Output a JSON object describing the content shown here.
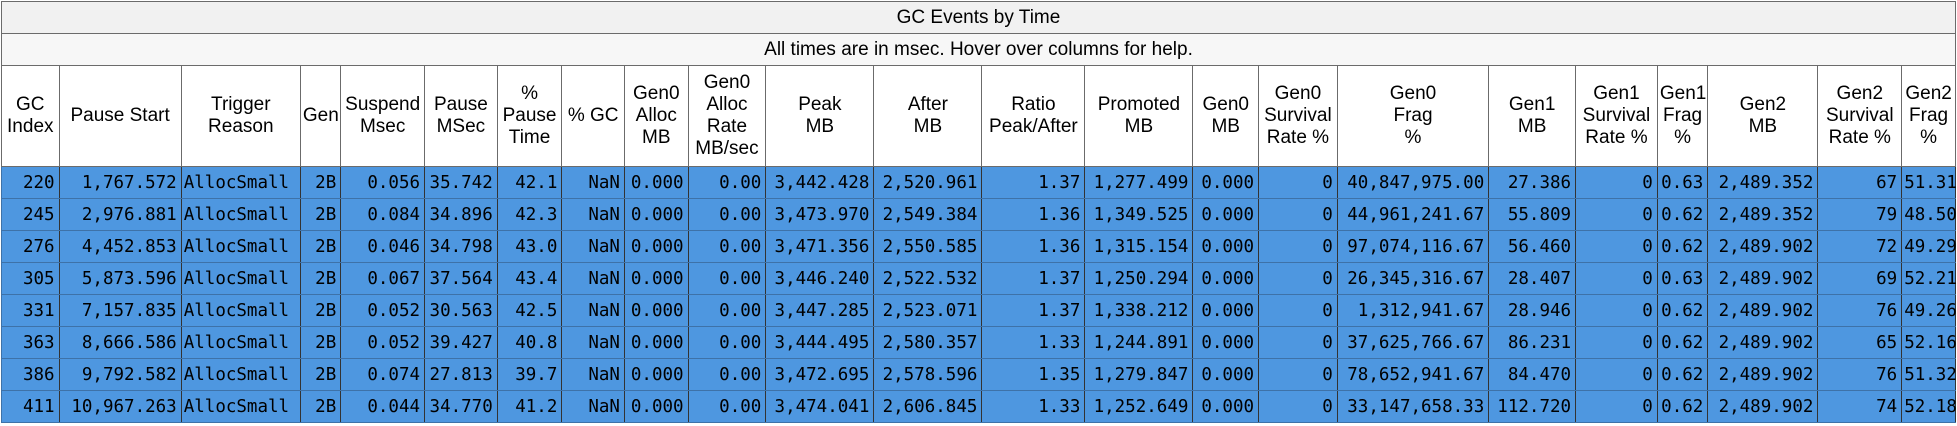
{
  "header": {
    "title": "GC Events by Time",
    "subtitle": "All times are in msec. Hover over columns for help."
  },
  "columns": [
    {
      "key": "gc_index",
      "label": "GC\nIndex"
    },
    {
      "key": "pause_start",
      "label": "Pause Start"
    },
    {
      "key": "trigger_reason",
      "label": "Trigger\nReason"
    },
    {
      "key": "gen",
      "label": "Gen"
    },
    {
      "key": "suspend_msec",
      "label": "Suspend\nMsec"
    },
    {
      "key": "pause_msec",
      "label": "Pause\nMSec"
    },
    {
      "key": "pct_pause_time",
      "label": "%\nPause\nTime"
    },
    {
      "key": "pct_gc",
      "label": "% GC"
    },
    {
      "key": "gen0_alloc_mb",
      "label": "Gen0\nAlloc\nMB"
    },
    {
      "key": "gen0_alloc_rate",
      "label": "Gen0\nAlloc\nRate\nMB/sec"
    },
    {
      "key": "peak_mb",
      "label": "Peak\nMB"
    },
    {
      "key": "after_mb",
      "label": "After\nMB"
    },
    {
      "key": "ratio_peak_after",
      "label": "Ratio\nPeak/After"
    },
    {
      "key": "promoted_mb",
      "label": "Promoted\nMB"
    },
    {
      "key": "gen0_mb",
      "label": "Gen0\nMB"
    },
    {
      "key": "gen0_survival_rate",
      "label": "Gen0\nSurvival\nRate %"
    },
    {
      "key": "gen0_frag",
      "label": "Gen0\nFrag\n%"
    },
    {
      "key": "gen1_mb",
      "label": "Gen1\nMB"
    },
    {
      "key": "gen1_survival_rate",
      "label": "Gen1\nSurvival\nRate %"
    },
    {
      "key": "gen1_frag",
      "label": "Gen1\nFrag\n%"
    },
    {
      "key": "gen2_mb",
      "label": "Gen2\nMB"
    },
    {
      "key": "gen2_survival_rate",
      "label": "Gen2\nSurvival\nRate %"
    },
    {
      "key": "gen2_frag",
      "label": "Gen2\nFrag\n%"
    }
  ],
  "rows": [
    [
      "220",
      "1,767.572",
      "AllocSmall",
      "2B",
      "0.056",
      "35.742",
      "42.1",
      "NaN",
      "0.000",
      "0.00",
      "3,442.428",
      "2,520.961",
      "1.37",
      "1,277.499",
      "0.000",
      "0",
      "40,847,975.00",
      "27.386",
      "0",
      "0.63",
      "2,489.352",
      "67",
      "51.31"
    ],
    [
      "245",
      "2,976.881",
      "AllocSmall",
      "2B",
      "0.084",
      "34.896",
      "42.3",
      "NaN",
      "0.000",
      "0.00",
      "3,473.970",
      "2,549.384",
      "1.36",
      "1,349.525",
      "0.000",
      "0",
      "44,961,241.67",
      "55.809",
      "0",
      "0.62",
      "2,489.352",
      "79",
      "48.50"
    ],
    [
      "276",
      "4,452.853",
      "AllocSmall",
      "2B",
      "0.046",
      "34.798",
      "43.0",
      "NaN",
      "0.000",
      "0.00",
      "3,471.356",
      "2,550.585",
      "1.36",
      "1,315.154",
      "0.000",
      "0",
      "97,074,116.67",
      "56.460",
      "0",
      "0.62",
      "2,489.902",
      "72",
      "49.29"
    ],
    [
      "305",
      "5,873.596",
      "AllocSmall",
      "2B",
      "0.067",
      "37.564",
      "43.4",
      "NaN",
      "0.000",
      "0.00",
      "3,446.240",
      "2,522.532",
      "1.37",
      "1,250.294",
      "0.000",
      "0",
      "26,345,316.67",
      "28.407",
      "0",
      "0.63",
      "2,489.902",
      "69",
      "52.21"
    ],
    [
      "331",
      "7,157.835",
      "AllocSmall",
      "2B",
      "0.052",
      "30.563",
      "42.5",
      "NaN",
      "0.000",
      "0.00",
      "3,447.285",
      "2,523.071",
      "1.37",
      "1,338.212",
      "0.000",
      "0",
      "1,312,941.67",
      "28.946",
      "0",
      "0.62",
      "2,489.902",
      "76",
      "49.26"
    ],
    [
      "363",
      "8,666.586",
      "AllocSmall",
      "2B",
      "0.052",
      "39.427",
      "40.8",
      "NaN",
      "0.000",
      "0.00",
      "3,444.495",
      "2,580.357",
      "1.33",
      "1,244.891",
      "0.000",
      "0",
      "37,625,766.67",
      "86.231",
      "0",
      "0.62",
      "2,489.902",
      "65",
      "52.16"
    ],
    [
      "386",
      "9,792.582",
      "AllocSmall",
      "2B",
      "0.074",
      "27.813",
      "39.7",
      "NaN",
      "0.000",
      "0.00",
      "3,472.695",
      "2,578.596",
      "1.35",
      "1,279.847",
      "0.000",
      "0",
      "78,652,941.67",
      "84.470",
      "0",
      "0.62",
      "2,489.902",
      "76",
      "51.32"
    ],
    [
      "411",
      "10,967.263",
      "AllocSmall",
      "2B",
      "0.044",
      "34.770",
      "41.2",
      "NaN",
      "0.000",
      "0.00",
      "3,474.041",
      "2,606.845",
      "1.33",
      "1,252.649",
      "0.000",
      "0",
      "33,147,658.33",
      "112.720",
      "0",
      "0.62",
      "2,489.902",
      "74",
      "52.18"
    ]
  ],
  "colors": {
    "row_background": "#4e97e0",
    "header_background": "#ffffff",
    "banner_background": "#f1f1f1",
    "grid_line": "#6b6b6b"
  }
}
